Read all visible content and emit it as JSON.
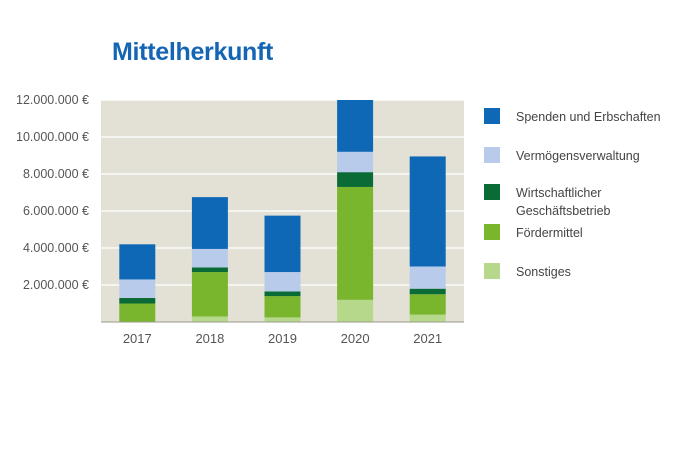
{
  "title": "Mittelherkunft",
  "chart_data": {
    "type": "bar",
    "stacked": true,
    "categories": [
      "2017",
      "2018",
      "2019",
      "2020",
      "2021"
    ],
    "series": [
      {
        "name": "Sonstiges",
        "color": "#b6d88a",
        "values": [
          0,
          300000,
          250000,
          1200000,
          400000
        ]
      },
      {
        "name": "Fördermittel",
        "color": "#79b52d",
        "values": [
          1000000,
          2400000,
          1150000,
          6100000,
          1100000
        ]
      },
      {
        "name": "Wirtschaftlicher Geschäftsbetrieb",
        "color": "#0a6b36",
        "values": [
          300000,
          250000,
          250000,
          800000,
          300000
        ]
      },
      {
        "name": "Vermögensverwaltung",
        "color": "#b9cbeb",
        "values": [
          1000000,
          1000000,
          1050000,
          1100000,
          1200000
        ]
      },
      {
        "name": "Spenden und Erbschaften",
        "color": "#0f68b6",
        "values": [
          1900000,
          2800000,
          3050000,
          2800000,
          5950000
        ]
      }
    ],
    "legend": [
      {
        "label_lines": [
          "Spenden und Erbschaften"
        ],
        "series": "Spenden und Erbschaften"
      },
      {
        "label_lines": [
          "Vermögensverwaltung"
        ],
        "series": "Vermögensverwaltung"
      },
      {
        "label_lines": [
          "Wirtschaftlicher",
          "Geschäftsbetrieb"
        ],
        "series": "Wirtschaftlicher Geschäftsbetrieb"
      },
      {
        "label_lines": [
          "Fördermittel"
        ],
        "series": "Fördermittel"
      },
      {
        "label_lines": [
          "Sonstiges"
        ],
        "series": "Sonstiges"
      }
    ],
    "y_ticks": [
      {
        "value": 2000000,
        "label": "2.000.000 €"
      },
      {
        "value": 4000000,
        "label": "4.000.000 €"
      },
      {
        "value": 6000000,
        "label": "6.000.000 €"
      },
      {
        "value": 8000000,
        "label": "8.000.000 €"
      },
      {
        "value": 10000000,
        "label": "10.000.000 €"
      },
      {
        "value": 12000000,
        "label": "12.000.000 €"
      }
    ],
    "ylim": [
      0,
      12000000
    ],
    "grid": true,
    "legend_position": "right",
    "plot_background": "#e3e1d6",
    "gridline_color": "#ffffff"
  }
}
